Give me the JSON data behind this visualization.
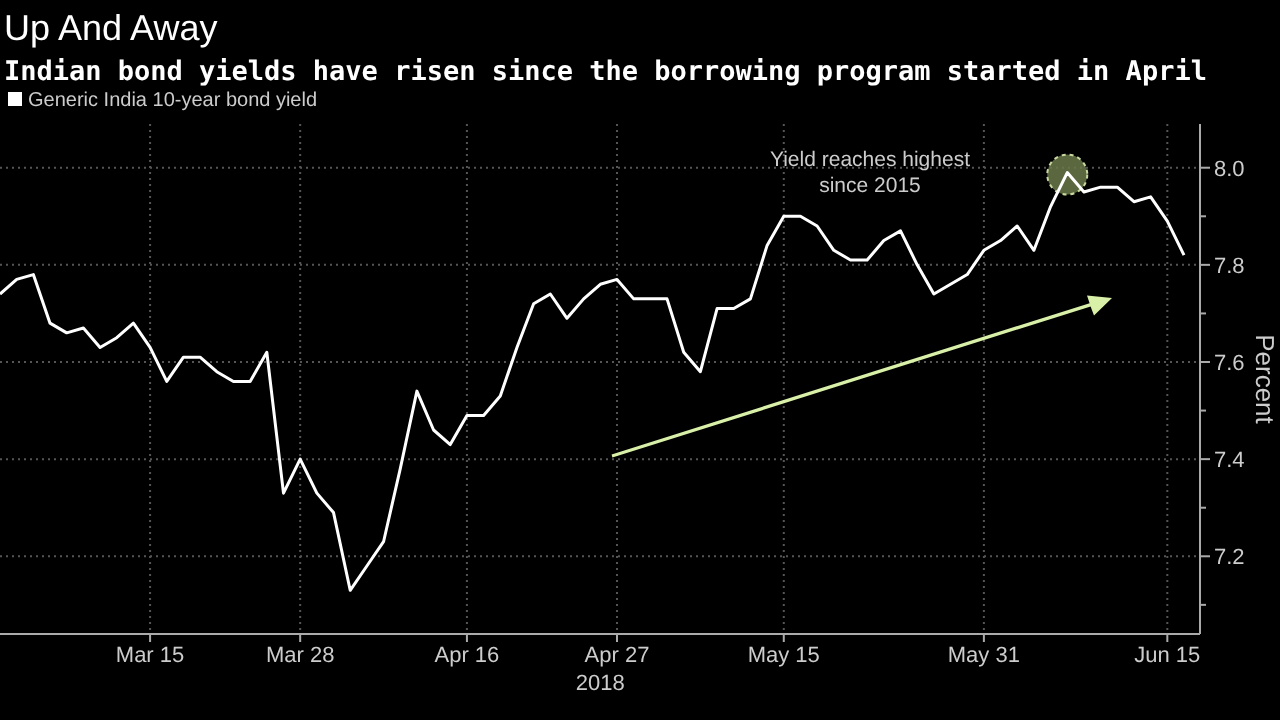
{
  "chart_data": {
    "type": "line",
    "title": "Up And Away",
    "subtitle": "Indian bond yields have risen since the borrowing program started in April",
    "xlabel": "2018",
    "ylabel": "Percent",
    "categories": [
      null,
      null,
      null,
      null,
      null,
      null,
      null,
      null,
      null,
      "Mar 15",
      null,
      null,
      null,
      null,
      null,
      null,
      null,
      null,
      "Mar 28",
      null,
      null,
      null,
      null,
      null,
      null,
      null,
      null,
      null,
      "Apr 16",
      null,
      null,
      null,
      null,
      null,
      null,
      null,
      null,
      "Apr 27",
      null,
      null,
      null,
      null,
      null,
      null,
      null,
      null,
      null,
      "May 15",
      null,
      null,
      null,
      null,
      null,
      null,
      null,
      null,
      null,
      null,
      null,
      "May 31",
      null,
      null,
      null,
      null,
      null,
      null,
      null,
      null,
      null,
      null,
      "Jun 15",
      null
    ],
    "series": [
      {
        "name": "Generic India 10-year bond yield",
        "color": "#ffffff",
        "values": [
          7.74,
          7.77,
          7.78,
          7.68,
          7.66,
          7.67,
          7.63,
          7.65,
          7.68,
          7.63,
          7.56,
          7.61,
          7.61,
          7.58,
          7.56,
          7.56,
          7.62,
          7.33,
          7.4,
          7.33,
          7.29,
          7.13,
          7.18,
          7.23,
          7.38,
          7.54,
          7.46,
          7.43,
          7.49,
          7.49,
          7.53,
          7.63,
          7.72,
          7.74,
          7.69,
          7.73,
          7.76,
          7.77,
          7.73,
          7.73,
          7.73,
          7.62,
          7.58,
          7.71,
          7.71,
          7.73,
          7.84,
          7.9,
          7.9,
          7.88,
          7.83,
          7.81,
          7.81,
          7.85,
          7.87,
          7.8,
          7.74,
          7.76,
          7.78,
          7.83,
          7.85,
          7.88,
          7.83,
          7.92,
          7.99,
          7.95,
          7.96,
          7.96,
          7.93,
          7.94,
          7.89,
          7.82
        ]
      }
    ],
    "ylim": [
      7.04,
      8.09
    ],
    "yticks": [
      {
        "value": 7.1,
        "label": null
      },
      {
        "value": 7.2,
        "label": "7.2"
      },
      {
        "value": 7.3,
        "label": null
      },
      {
        "value": 7.4,
        "label": "7.4"
      },
      {
        "value": 7.5,
        "label": null
      },
      {
        "value": 7.6,
        "label": "7.6"
      },
      {
        "value": 7.7,
        "label": null
      },
      {
        "value": 7.8,
        "label": "7.8"
      },
      {
        "value": 7.9,
        "label": null
      },
      {
        "value": 8,
        "label": "8.0"
      }
    ],
    "grid": true,
    "legend": "top left",
    "marker": "none",
    "line_style": "solid",
    "annotations": [
      "Yield reaches highest since 2015"
    ]
  }
}
